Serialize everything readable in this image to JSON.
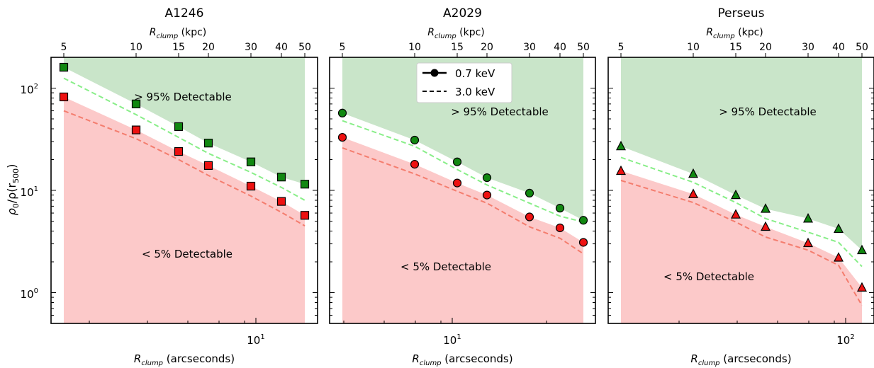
{
  "figure": {
    "ylabel_main": "ρ",
    "ylabel_sub0": "0",
    "ylabel_mid": "/ρ(r",
    "ylabel_sub1": "500",
    "ylabel_end": ")",
    "y_ticks": [
      "10",
      "10",
      "10"
    ],
    "y_tick_exps": [
      "0",
      "1",
      "2"
    ],
    "x_label_main": "R",
    "x_label_sub": "clump",
    "x_label_unit": " (arcseconds)",
    "top_label_main": "R",
    "top_label_sub": "clump",
    "top_label_unit": " (kpc)",
    "colors": {
      "green_fill": "#c9e5c9",
      "red_fill": "#fcc9c9",
      "green_marker": "#118811",
      "red_marker": "#ee1111",
      "green_dash": "#88ee88",
      "red_dash": "#f47d6e"
    }
  },
  "legend": {
    "item1": "0.7 keV",
    "item2": "3.0 keV"
  },
  "chart_data": [
    {
      "type": "scatter",
      "title": "A1246",
      "marker": "square",
      "yscale": "log",
      "ylim": [
        0.5,
        200
      ],
      "top_ticks_kpc": [
        "5",
        "10",
        "15",
        "20",
        "30",
        "40",
        "50"
      ],
      "bottom_ticks_arcsec": [
        "10"
      ],
      "bottom_tick_exps": [
        "1"
      ],
      "series": [
        {
          "values": [
            160,
            70,
            42,
            29,
            19,
            13.5,
            11.5
          ]
        },
        {
          "values": [
            82,
            39,
            24,
            17.5,
            11,
            7.8,
            5.7
          ]
        }
      ],
      "dashed": [
        {
          "values": [
            125,
            55,
            33,
            23,
            15,
            10.7,
            8
          ]
        },
        {
          "values": [
            60,
            32,
            20,
            14,
            8.8,
            6.1,
            4.5
          ]
        }
      ],
      "annotations": [
        "> 95% Detectable",
        "< 5% Detectable"
      ]
    },
    {
      "type": "scatter",
      "title": "A2029",
      "marker": "circle",
      "yscale": "log",
      "ylim": [
        0.5,
        200
      ],
      "top_ticks_kpc": [
        "5",
        "10",
        "15",
        "20",
        "30",
        "40",
        "50"
      ],
      "bottom_ticks_arcsec": [
        "10"
      ],
      "bottom_tick_exps": [
        "1"
      ],
      "series": [
        {
          "values": [
            57,
            31,
            19,
            13.3,
            9.4,
            6.7,
            5.1
          ]
        },
        {
          "values": [
            33,
            18,
            11.8,
            9,
            5.5,
            4.3,
            3.1
          ]
        }
      ],
      "dashed": [
        {
          "values": [
            48,
            27,
            16,
            11.3,
            7.5,
            5.6,
            4.9
          ]
        },
        {
          "values": [
            26,
            14.5,
            9.8,
            7.5,
            4.4,
            3.4,
            2.4
          ]
        }
      ],
      "annotations": [
        "> 95% Detectable",
        "< 5% Detectable"
      ]
    },
    {
      "type": "scatter",
      "title": "Perseus",
      "marker": "triangle",
      "yscale": "log",
      "ylim": [
        0.5,
        200
      ],
      "top_ticks_kpc": [
        "5",
        "10",
        "15",
        "20",
        "30",
        "40",
        "50"
      ],
      "bottom_ticks_arcsec": [
        "10"
      ],
      "bottom_tick_exps": [
        "2"
      ],
      "series": [
        {
          "values": [
            27,
            14.5,
            9,
            6.6,
            5.3,
            4.2,
            2.6
          ]
        },
        {
          "values": [
            15.5,
            9.2,
            5.8,
            4.4,
            3.05,
            2.2,
            1.12
          ]
        }
      ],
      "dashed": [
        {
          "values": [
            21,
            12,
            7.6,
            5.3,
            3.9,
            3.1,
            1.8
          ]
        },
        {
          "values": [
            12.5,
            7.6,
            4.9,
            3.5,
            2.6,
            1.85,
            0.75
          ]
        }
      ],
      "annotations": [
        "> 95% Detectable",
        "< 5% Detectable"
      ]
    }
  ]
}
